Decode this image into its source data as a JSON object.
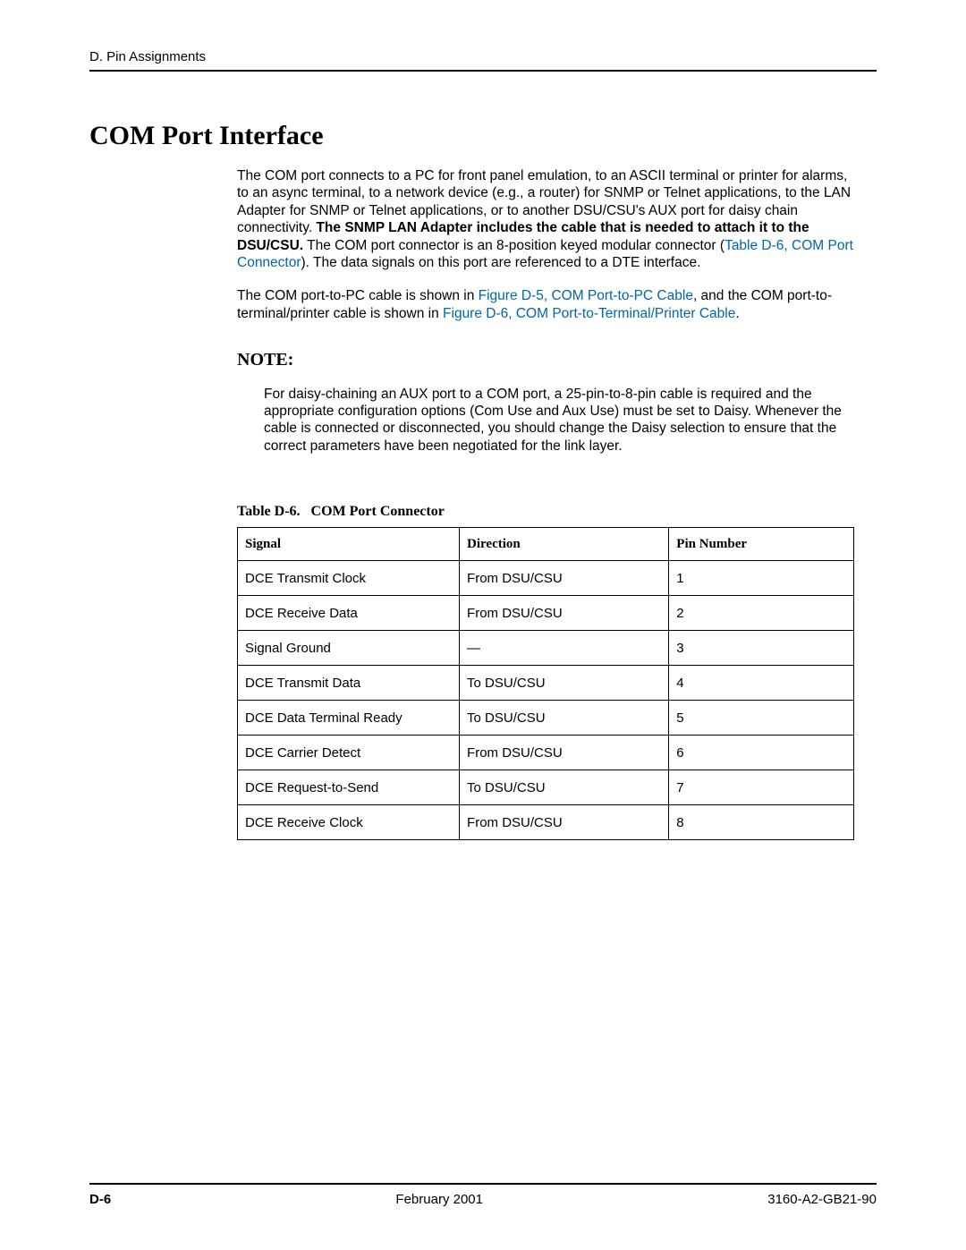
{
  "header": {
    "running_head": "D. Pin Assignments"
  },
  "title": "COM Port Interface",
  "para1": {
    "t1": "The COM port connects to a PC for front panel emulation, to an ASCII terminal or printer for alarms, to an async terminal, to a network device (e.g., a router) for SNMP or Telnet applications, to the LAN Adapter for SNMP or Telnet applications, or to another DSU/CSU's AUX port for daisy chain connectivity. ",
    "bold": "The SNMP LAN Adapter includes the cable that is needed to attach it to the DSU/CSU.",
    "t2": " The COM port connector is an 8-position keyed modular connector (",
    "link": "Table D-6, COM Port Connector",
    "t3": "). The data signals on this port are referenced to a DTE interface."
  },
  "para2": {
    "t1": "The COM port-to-PC cable is shown in ",
    "link1": "Figure D-5, COM Port-to-PC Cable",
    "t2": ", and the COM port-to-terminal/printer cable is shown in ",
    "link2": "Figure D-6, COM Port-to-Terminal/Printer Cable",
    "t3": "."
  },
  "note": {
    "title": "NOTE:",
    "body": "For daisy-chaining an AUX port to a COM port, a 25-pin-to-8-pin cable is required and the appropriate configuration options (Com Use and Aux Use) must be set to Daisy. Whenever the cable is connected or disconnected, you should change the Daisy selection to ensure that the correct parameters have been negotiated for the link layer."
  },
  "table": {
    "caption_prefix": "Table D-6.",
    "caption_title": "COM Port Connector",
    "columns": [
      "Signal",
      "Direction",
      "Pin Number"
    ],
    "rows": [
      [
        "DCE Transmit Clock",
        "From DSU/CSU",
        "1"
      ],
      [
        "DCE Receive Data",
        "From DSU/CSU",
        "2"
      ],
      [
        "Signal Ground",
        "—",
        "3"
      ],
      [
        "DCE Transmit Data",
        "To DSU/CSU",
        "4"
      ],
      [
        "DCE Data Terminal Ready",
        "To DSU/CSU",
        "5"
      ],
      [
        "DCE Carrier Detect",
        "From DSU/CSU",
        "6"
      ],
      [
        "DCE Request-to-Send",
        "To DSU/CSU",
        "7"
      ],
      [
        "DCE Receive Clock",
        "From DSU/CSU",
        "8"
      ]
    ]
  },
  "footer": {
    "page": "D-6",
    "center": "February 2001",
    "doc": "3160-A2-GB21-90"
  }
}
